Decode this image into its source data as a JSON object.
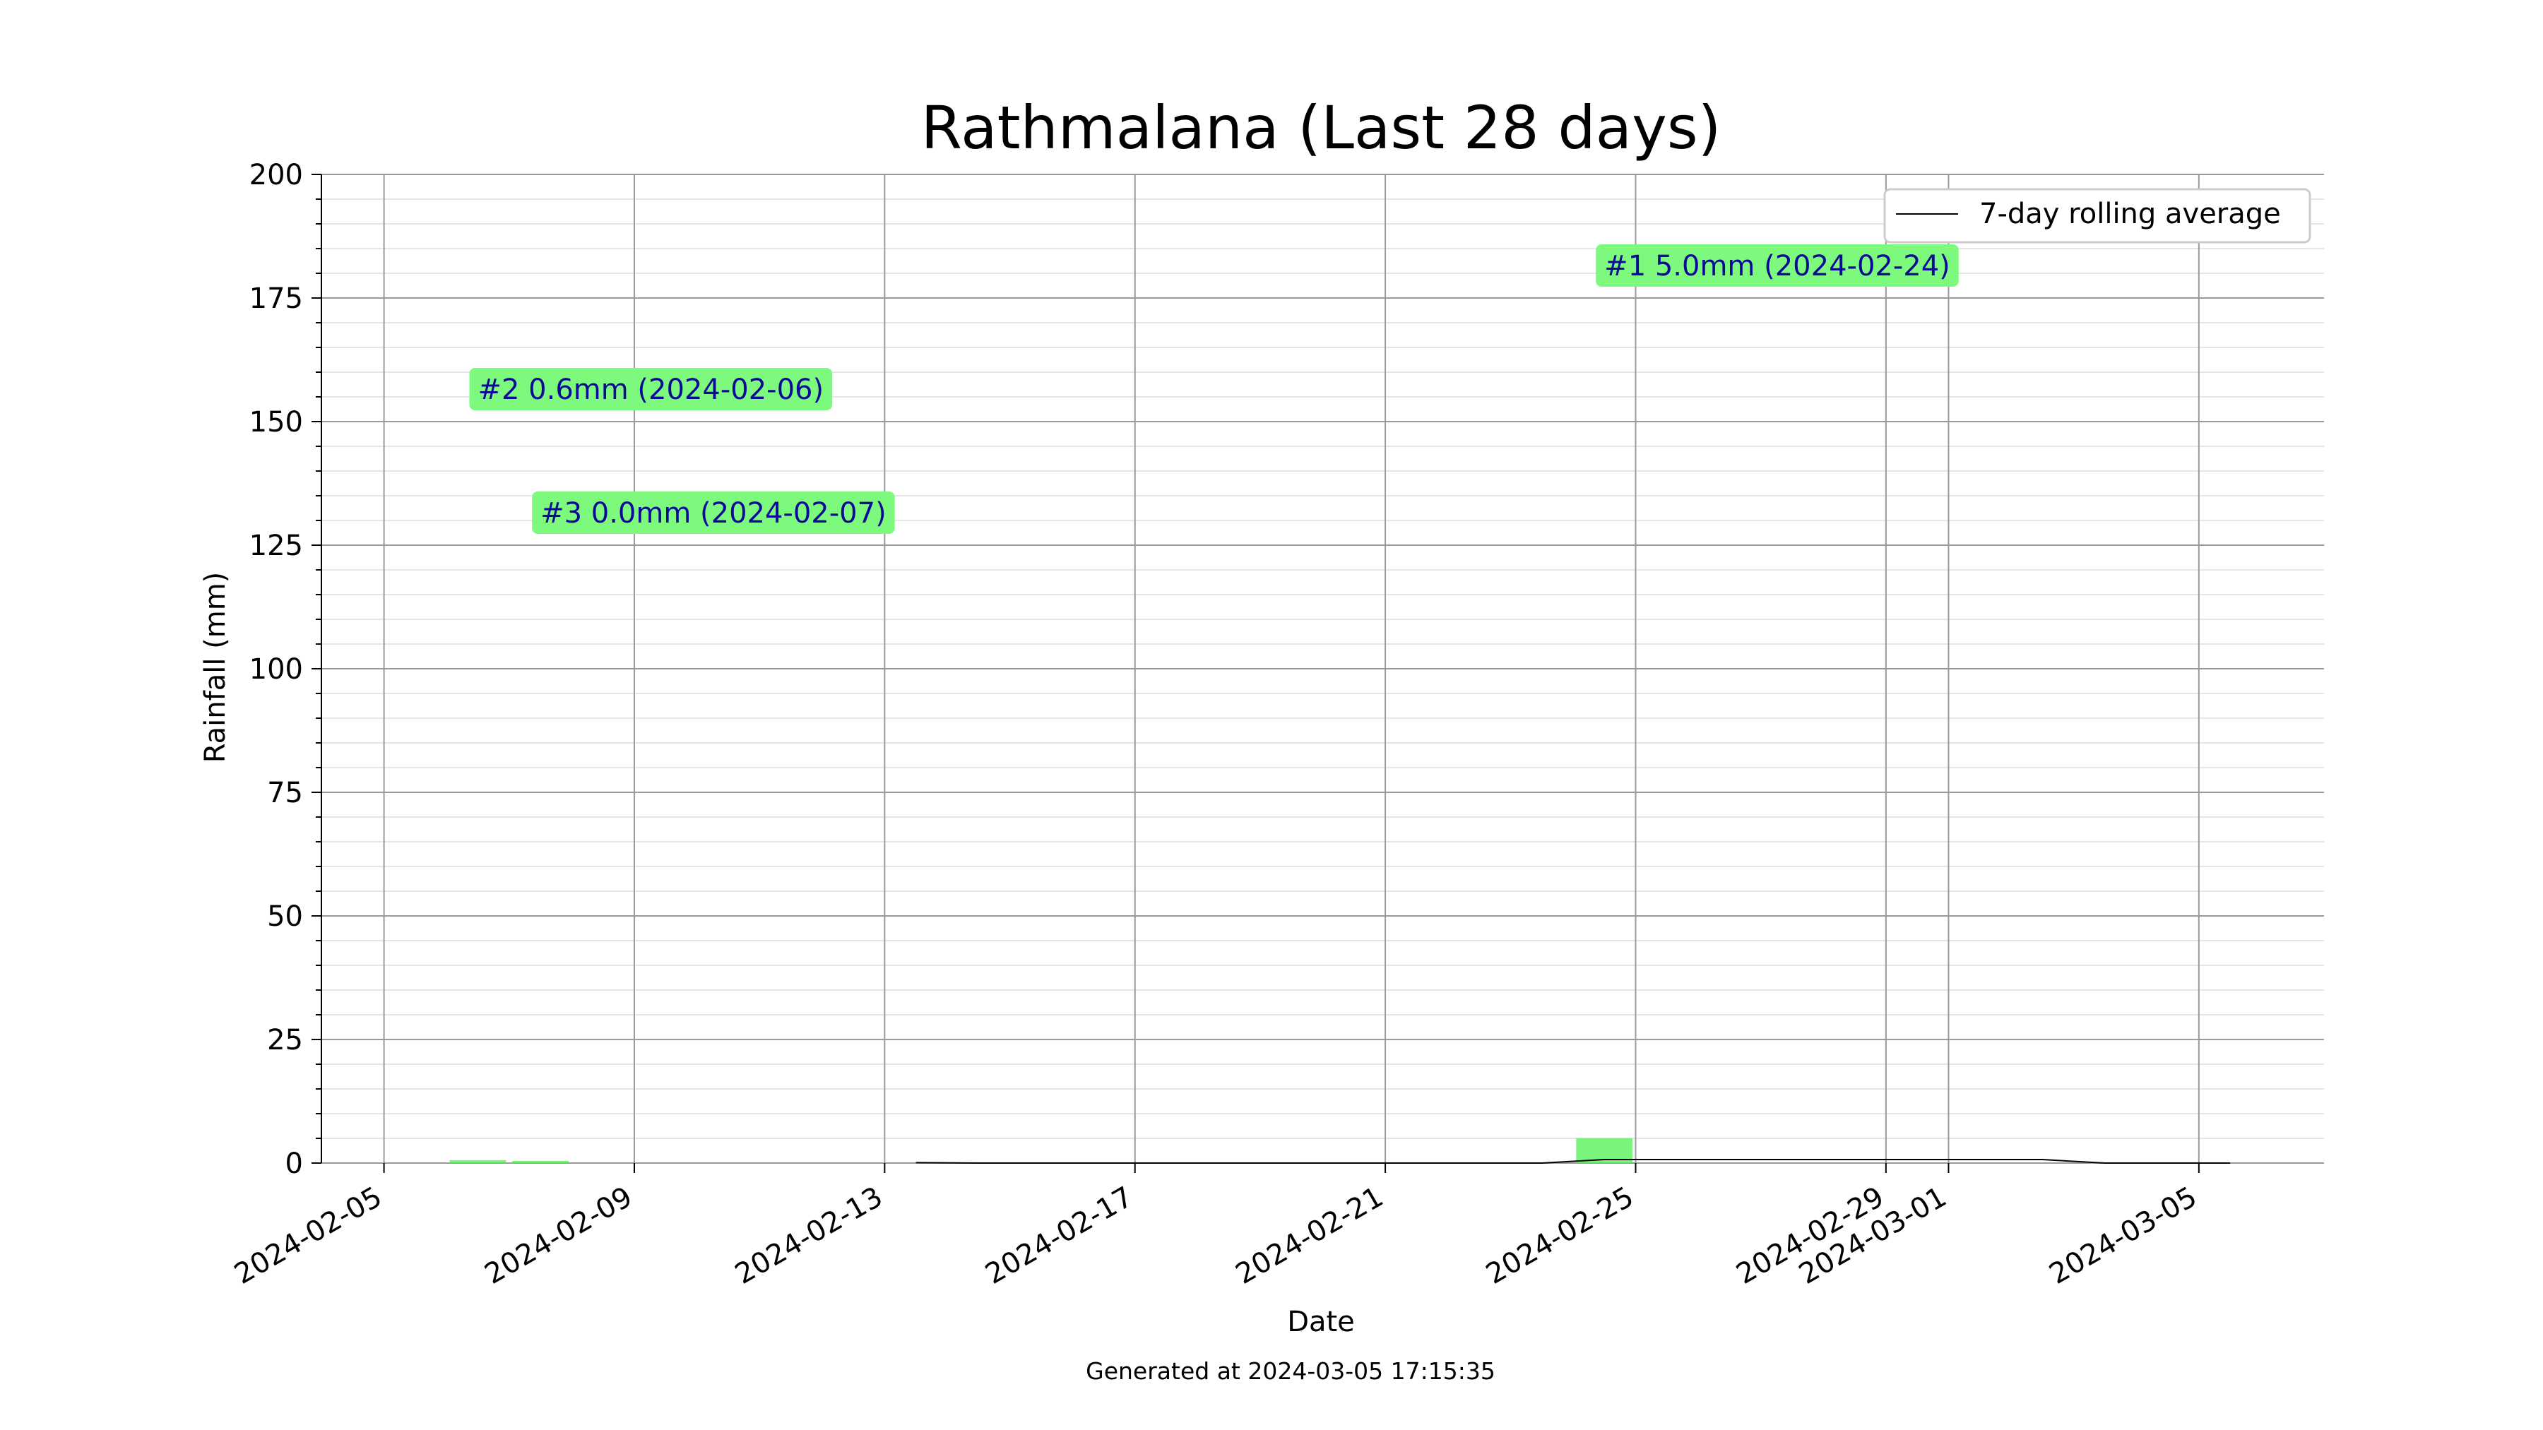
{
  "chart_data": {
    "type": "bar",
    "title": "Rathmalana (Last 28 days)",
    "xlabel": "Date",
    "ylabel": "Rainfall (mm)",
    "ylim": [
      0,
      200
    ],
    "xlim": [
      "2024-02-04",
      "2024-03-07"
    ],
    "yticks": [
      0,
      25,
      50,
      75,
      100,
      125,
      150,
      175,
      200
    ],
    "xticks": [
      "2024-02-05",
      "2024-02-09",
      "2024-02-13",
      "2024-02-17",
      "2024-02-21",
      "2024-02-25",
      "2024-02-29",
      "2024-03-01",
      "2024-03-05"
    ],
    "grid": true,
    "legend": {
      "position": "top-right",
      "label": "7-day rolling average"
    },
    "bar_color": "#4ef04e",
    "line_color": "#000000",
    "bars": [
      {
        "date": "2024-02-06",
        "value": 0.6
      },
      {
        "date": "2024-02-07",
        "value": 0.0
      },
      {
        "date": "2024-02-24",
        "value": 5.0
      }
    ],
    "rolling_average": [
      {
        "date": "2024-02-13",
        "value": 0.09
      },
      {
        "date": "2024-02-14",
        "value": 0.0
      },
      {
        "date": "2024-02-23",
        "value": 0.0
      },
      {
        "date": "2024-02-24",
        "value": 0.71
      },
      {
        "date": "2024-03-01",
        "value": 0.71
      },
      {
        "date": "2024-03-02",
        "value": 0.71
      },
      {
        "date": "2024-03-03",
        "value": 0.0
      },
      {
        "date": "2024-03-05",
        "value": 0.0
      }
    ],
    "annotations": [
      {
        "text": "#1 5.0mm (2024-02-24)",
        "date": "2024-02-24",
        "y": 181
      },
      {
        "text": "#2 0.6mm (2024-02-06)",
        "date": "2024-02-06",
        "y": 156
      },
      {
        "text": "#3 0.0mm (2024-02-07)",
        "date": "2024-02-07",
        "y": 131
      }
    ],
    "annotation_color": "#7dfa7d",
    "annotation_text_color": "#0a0a96"
  },
  "footer": "Generated at 2024-03-05 17:15:35"
}
